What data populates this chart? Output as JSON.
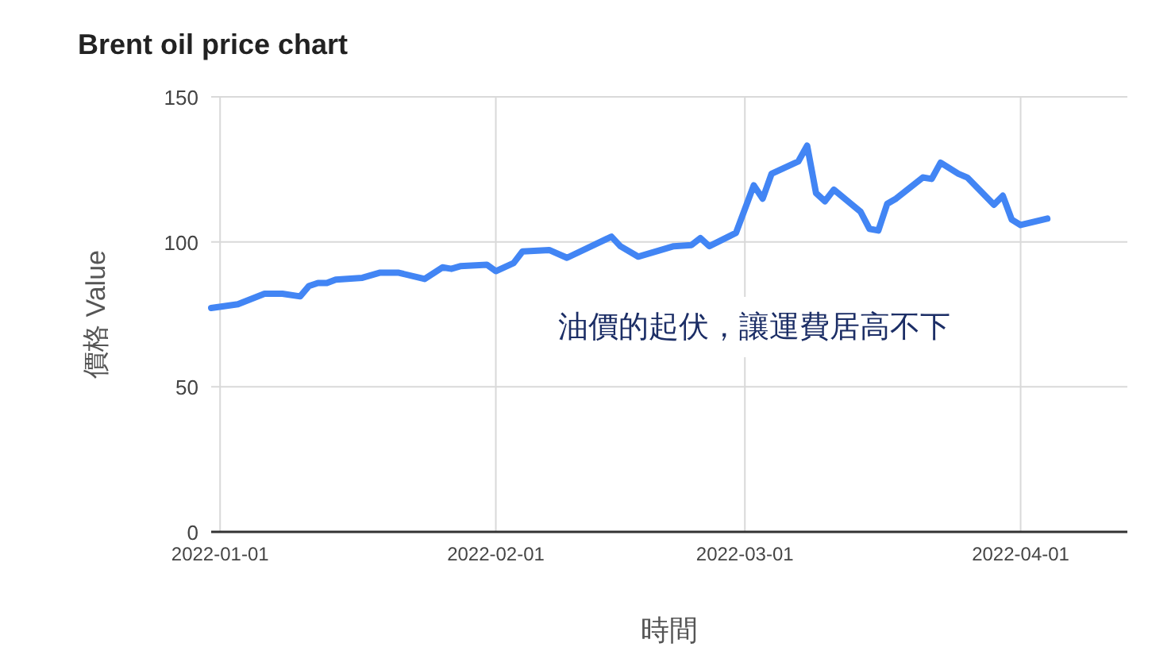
{
  "chart_data": {
    "type": "line",
    "title": "Brent oil price chart",
    "xlabel": "時間",
    "ylabel": "價格 Value",
    "annotations": [
      "油價的起伏，讓運費居高不下"
    ],
    "x": [
      "2021-12-31",
      "2022-01-03",
      "2022-01-06",
      "2022-01-08",
      "2022-01-10",
      "2022-01-11",
      "2022-01-12",
      "2022-01-13",
      "2022-01-14",
      "2022-01-17",
      "2022-01-19",
      "2022-01-21",
      "2022-01-24",
      "2022-01-26",
      "2022-01-27",
      "2022-01-28",
      "2022-01-31",
      "2022-02-01",
      "2022-02-03",
      "2022-02-04",
      "2022-02-07",
      "2022-02-09",
      "2022-02-14",
      "2022-02-15",
      "2022-02-17",
      "2022-02-21",
      "2022-02-23",
      "2022-02-24",
      "2022-02-25",
      "2022-02-28",
      "2022-03-02",
      "2022-03-03",
      "2022-03-04",
      "2022-03-07",
      "2022-03-08",
      "2022-03-09",
      "2022-03-10",
      "2022-03-11",
      "2022-03-14",
      "2022-03-15",
      "2022-03-16",
      "2022-03-17",
      "2022-03-18",
      "2022-03-21",
      "2022-03-22",
      "2022-03-23",
      "2022-03-25",
      "2022-03-26",
      "2022-03-29",
      "2022-03-30",
      "2022-03-31",
      "2022-04-01",
      "2022-04-04"
    ],
    "series": [
      {
        "color": "#4285f4",
        "values": [
          77.2,
          78.5,
          82.1,
          82.1,
          81.2,
          84.8,
          85.8,
          85.8,
          87.0,
          87.6,
          89.4,
          89.4,
          87.2,
          91.2,
          90.7,
          91.6,
          92.1,
          89.9,
          92.7,
          96.7,
          97.2,
          94.5,
          101.8,
          98.5,
          94.9,
          98.5,
          98.9,
          101.3,
          98.5,
          103.1,
          119.5,
          114.9,
          123.5,
          127.7,
          133.2,
          116.8,
          114.0,
          118.0,
          110.4,
          104.5,
          103.9,
          113.1,
          114.9,
          122.2,
          121.7,
          127.3,
          123.5,
          122.2,
          112.8,
          115.9,
          107.7,
          105.8,
          108.0
        ]
      }
    ],
    "xlim": [
      "2021-12-31",
      "2022-04-13"
    ],
    "xticks": [
      "2022-01-01",
      "2022-02-01",
      "2022-03-01",
      "2022-04-01"
    ],
    "ylim": [
      0,
      150
    ],
    "yticks": [
      0,
      50,
      100,
      150
    ],
    "grid": true,
    "marker": "none",
    "line_style": "solid"
  }
}
